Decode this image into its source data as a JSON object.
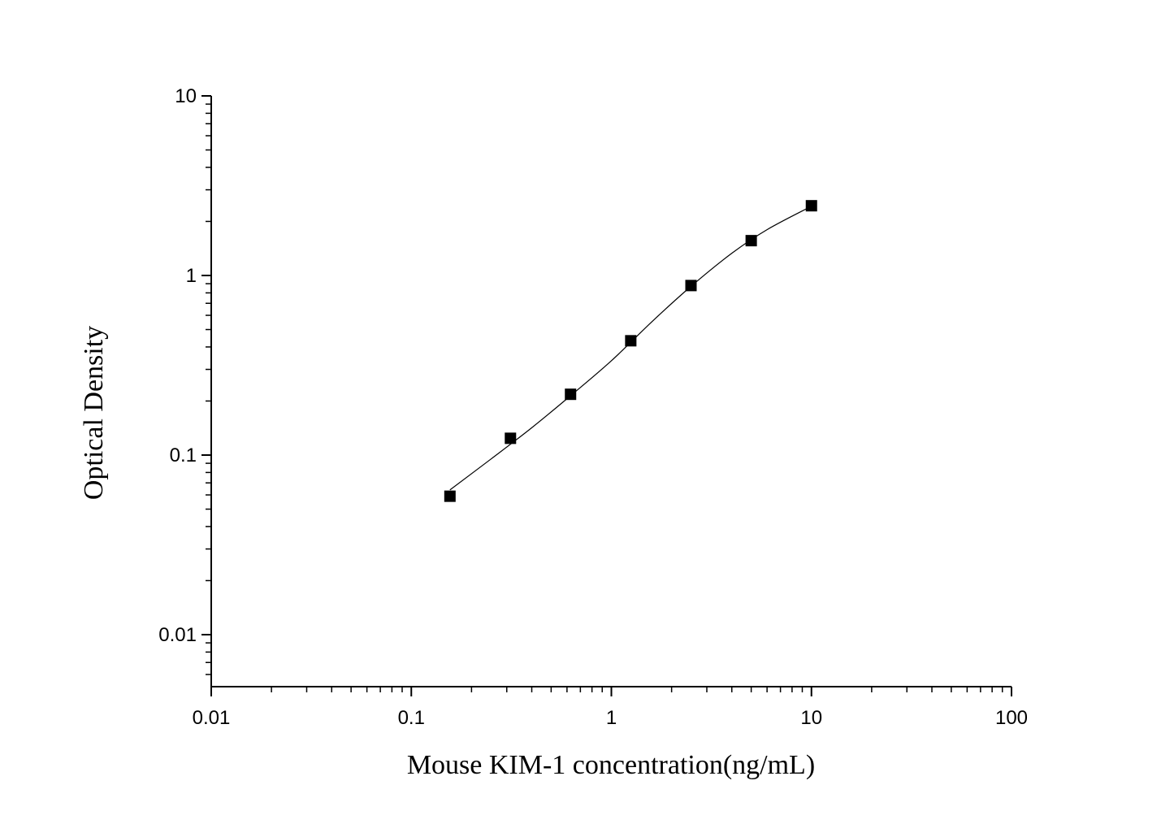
{
  "chart_data": {
    "type": "scatter",
    "title": "",
    "xlabel": "Mouse KIM-1 concentration(ng/mL)",
    "ylabel": "Optical Density",
    "x_scale": "log",
    "y_scale": "log",
    "xlim": [
      0.01,
      100
    ],
    "ylim": [
      0.005,
      10
    ],
    "x_tick_labels": [
      "0.01",
      "0.1",
      "1",
      "10",
      "100"
    ],
    "y_tick_labels": [
      "0.01",
      "0.1",
      "1",
      "10"
    ],
    "grid": false,
    "legend": "none",
    "colors": {
      "points": "#000000",
      "curve": "#000000",
      "axis": "#000000"
    },
    "series": [
      {
        "marker": "square",
        "x": [
          0.156,
          0.313,
          0.625,
          1.25,
          2.5,
          5,
          10
        ],
        "y": [
          0.059,
          0.124,
          0.218,
          0.433,
          0.879,
          1.563,
          2.445
        ]
      }
    ],
    "fit_curve": {
      "x": [
        0.156,
        0.25,
        0.4,
        0.625,
        1.0,
        1.6,
        2.5,
        4.0,
        6.0,
        10
      ],
      "y": [
        0.064,
        0.095,
        0.142,
        0.214,
        0.335,
        0.555,
        0.87,
        1.33,
        1.8,
        2.43
      ]
    }
  }
}
